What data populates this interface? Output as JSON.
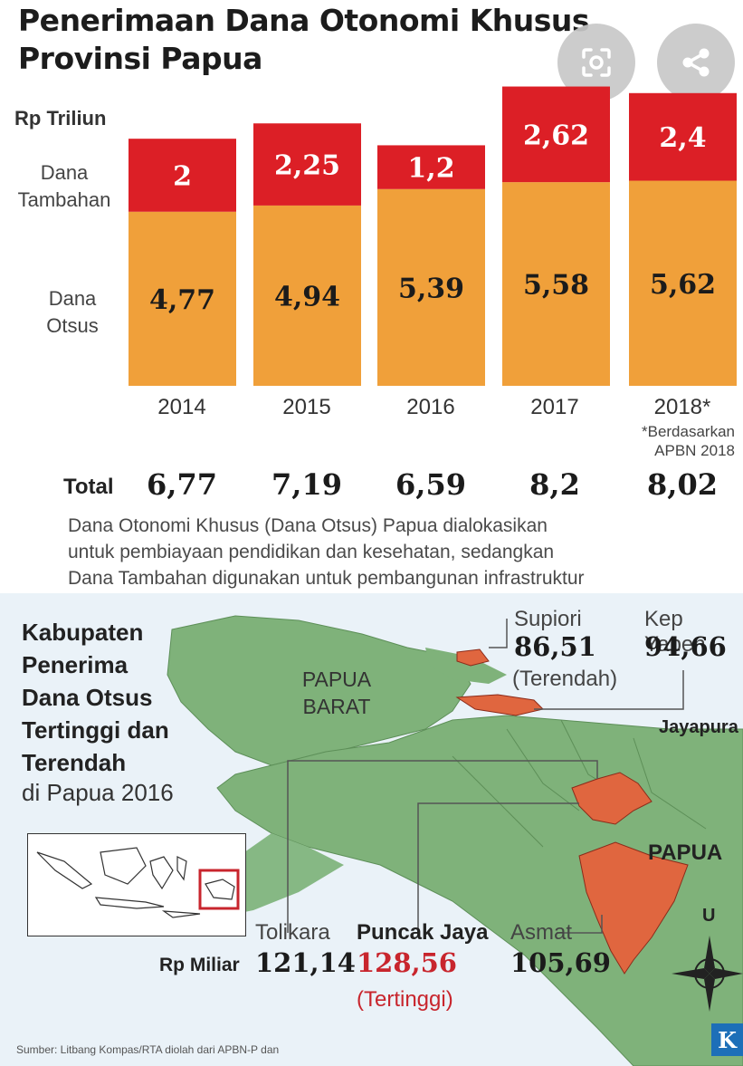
{
  "title_line1": "Penerimaan Dana Otonomi Khusus",
  "title_line2": "Provinsi Papua",
  "unit": "Rp Triliun",
  "row_labels": {
    "tambahan_1": "Dana",
    "tambahan_2": "Tambahan",
    "otsus_1": "Dana",
    "otsus_2": "Otsus"
  },
  "chart_data": {
    "type": "bar",
    "stacked": true,
    "categories": [
      "2014",
      "2015",
      "2016",
      "2017",
      "2018*"
    ],
    "series": [
      {
        "name": "Dana Otsus",
        "values": [
          4.77,
          4.94,
          5.39,
          5.58,
          5.62
        ],
        "labels": [
          "4,77",
          "4,94",
          "5,39",
          "5,58",
          "5,62"
        ],
        "color": "#f0a03a"
      },
      {
        "name": "Dana Tambahan",
        "values": [
          2,
          2.25,
          1.2,
          2.62,
          2.4
        ],
        "labels": [
          "2",
          "2,25",
          "1,2",
          "2,62",
          "2,4"
        ],
        "color": "#dc1f26"
      }
    ],
    "totals_label": "Total",
    "totals": [
      "6,77",
      "7,19",
      "6,59",
      "8,2",
      "8,02"
    ],
    "note_line1": "*Berdasarkan",
    "note_line2": "APBN 2018",
    "ylabel": "Rp Triliun",
    "ylim": [
      0,
      8.2
    ]
  },
  "description": {
    "line1": "Dana Otonomi Khusus (Dana Otsus) Papua dialokasikan",
    "line2": "untuk pembiayaan pendidikan dan kesehatan, sedangkan",
    "line3": "Dana Tambahan digunakan untuk pembangunan infrastruktur"
  },
  "map": {
    "title_lines": [
      "Kabupaten",
      "Penerima",
      "Dana Otsus",
      "Tertinggi dan",
      "Terendah"
    ],
    "subtitle": "di Papua 2016",
    "region_papua_barat_1": "PAPUA",
    "region_papua_barat_2": "BARAT",
    "region_papua": "PAPUA",
    "city_jayapura": "Jayapura",
    "unit": "Rp Miliar",
    "compass_north": "U",
    "kabupaten": [
      {
        "name": "Supiori",
        "value": "86,51",
        "note": "(Terendah)"
      },
      {
        "name": "Kep Yapen",
        "value": "94,66"
      },
      {
        "name": "Tolikara",
        "value": "121,14"
      },
      {
        "name": "Puncak Jaya",
        "value": "128,56",
        "note": "(Tertinggi)"
      },
      {
        "name": "Asmat",
        "value": "105,69"
      }
    ],
    "colors": {
      "land": "#7fb27a",
      "highlight": "#e0663f",
      "sea": "#dbe9f4"
    }
  },
  "source": "Sumber: Litbang Kompas/RTA diolah dari APBN-P dan",
  "logo_letter": "K",
  "icons": {
    "lens": "lens-search-icon",
    "share": "share-icon"
  }
}
